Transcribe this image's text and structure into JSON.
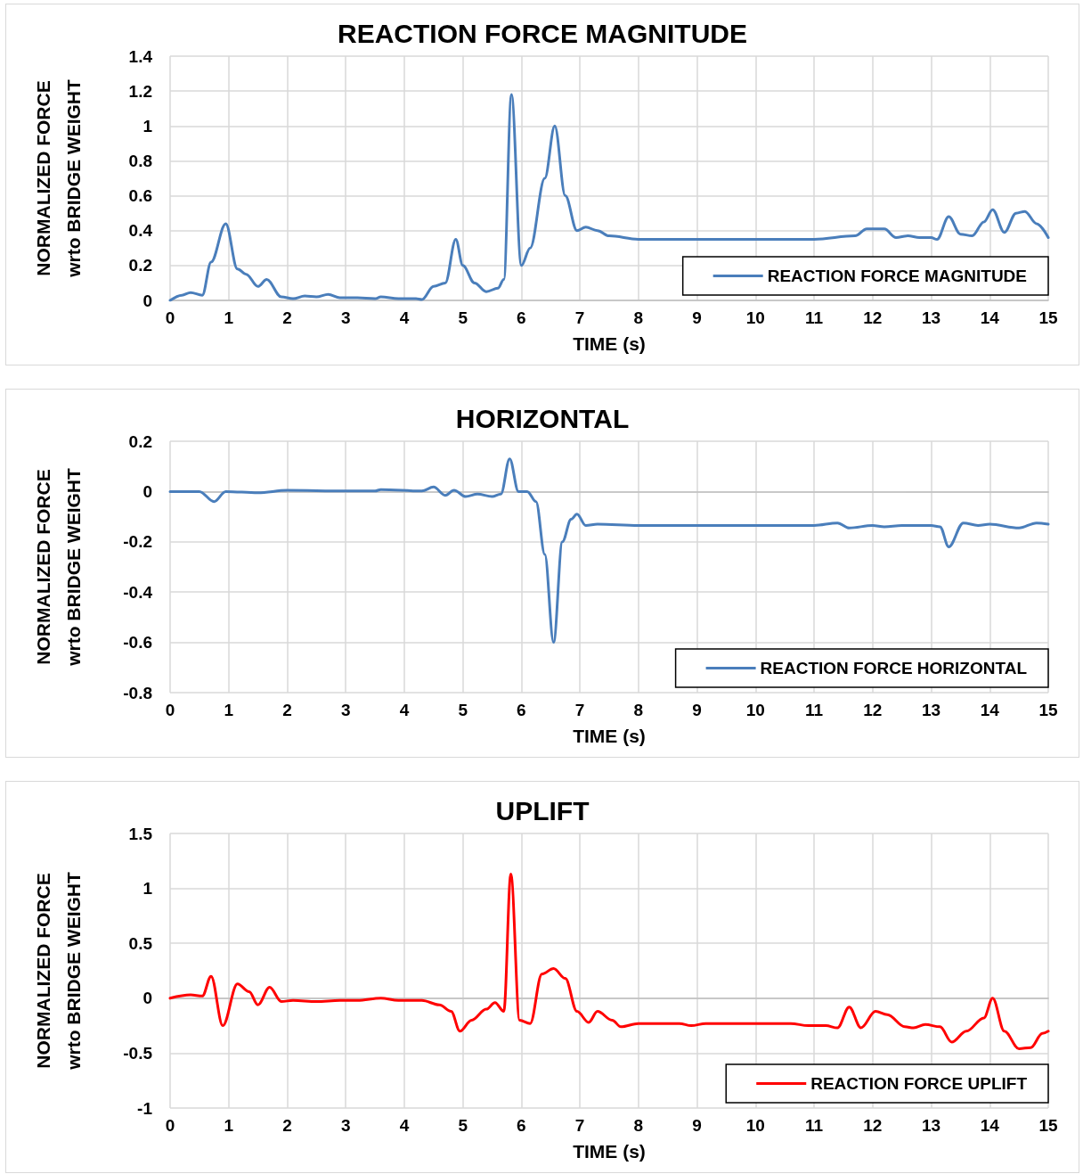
{
  "chart_data": [
    {
      "type": "line",
      "title": "REACTION FORCE MAGNITUDE",
      "xlabel": "TIME (s)",
      "ylabel": "NORMALIZED FORCE wrto BRIDGE WEIGHT",
      "xlim": [
        0,
        15
      ],
      "xticks": [
        0,
        1,
        2,
        3,
        4,
        5,
        6,
        7,
        8,
        9,
        10,
        11,
        12,
        13,
        14,
        15
      ],
      "ylim": [
        0,
        1.4
      ],
      "yticks": [
        0,
        0.2,
        0.4,
        0.6,
        0.8,
        1,
        1.2,
        1.4
      ],
      "grid": true,
      "legend": "bottom right",
      "marker": "none",
      "line_style": "solid",
      "series": [
        {
          "name": "REACTION FORCE MAGNITUDE",
          "color": "#4a7ebb",
          "x": [
            0,
            0.2,
            0.35,
            0.55,
            0.7,
            0.95,
            1.15,
            1.3,
            1.5,
            1.65,
            1.9,
            2.1,
            2.3,
            2.5,
            2.7,
            2.9,
            3.2,
            3.5,
            3.6,
            3.9,
            4.2,
            4.3,
            4.5,
            4.7,
            4.88,
            5,
            5.2,
            5.4,
            5.6,
            5.7,
            5.83,
            6,
            6.15,
            6.4,
            6.57,
            6.75,
            6.95,
            7.1,
            7.3,
            7.5,
            8,
            9,
            10,
            11,
            11.7,
            11.9,
            12.2,
            12.4,
            12.6,
            12.8,
            13,
            13.1,
            13.3,
            13.5,
            13.7,
            13.9,
            14.05,
            14.25,
            14.45,
            14.6,
            14.8,
            15
          ],
          "values": [
            0,
            0.03,
            0.045,
            0.03,
            0.22,
            0.44,
            0.18,
            0.15,
            0.08,
            0.12,
            0.02,
            0.01,
            0.025,
            0.02,
            0.035,
            0.015,
            0.015,
            0.01,
            0.02,
            0.01,
            0.01,
            0.005,
            0.08,
            0.1,
            0.35,
            0.2,
            0.1,
            0.05,
            0.07,
            0.12,
            1.18,
            0.2,
            0.3,
            0.7,
            1,
            0.6,
            0.4,
            0.42,
            0.4,
            0.37,
            0.35,
            0.35,
            0.35,
            0.35,
            0.37,
            0.41,
            0.41,
            0.36,
            0.37,
            0.36,
            0.36,
            0.35,
            0.48,
            0.38,
            0.37,
            0.45,
            0.52,
            0.39,
            0.5,
            0.51,
            0.44,
            0.36
          ]
        }
      ]
    },
    {
      "type": "line",
      "title": "HORIZONTAL",
      "xlabel": "TIME (s)",
      "ylabel": "NORMALIZED FORCE wrto BRIDGE WEIGHT",
      "xlim": [
        0,
        15
      ],
      "xticks": [
        0,
        1,
        2,
        3,
        4,
        5,
        6,
        7,
        8,
        9,
        10,
        11,
        12,
        13,
        14,
        15
      ],
      "ylim": [
        -0.8,
        0.2
      ],
      "yticks": [
        -0.8,
        -0.6,
        -0.4,
        -0.2,
        0,
        0.2
      ],
      "grid": true,
      "legend": "bottom right",
      "marker": "none",
      "line_style": "solid",
      "series": [
        {
          "name": "REACTION FORCE HORIZONTAL",
          "color": "#4a7ebb",
          "x": [
            0,
            0.5,
            0.75,
            0.95,
            1.5,
            2,
            3,
            3.5,
            3.6,
            4.3,
            4.5,
            4.7,
            4.85,
            5.05,
            5.25,
            5.5,
            5.65,
            5.8,
            5.95,
            6.1,
            6.25,
            6.4,
            6.55,
            6.7,
            6.85,
            6.95,
            7.1,
            7.3,
            8,
            9,
            10,
            11,
            11.4,
            11.6,
            12,
            12.2,
            12.5,
            13,
            13.15,
            13.3,
            13.55,
            13.8,
            14,
            14.5,
            14.8,
            15
          ],
          "values": [
            0,
            0,
            -0.04,
            0,
            -0.005,
            0.005,
            0.002,
            0.002,
            0.008,
            0.002,
            0.018,
            -0.015,
            0.005,
            -0.02,
            -0.01,
            -0.02,
            -0.01,
            0.13,
            0,
            0,
            -0.04,
            -0.25,
            -0.6,
            -0.2,
            -0.11,
            -0.09,
            -0.135,
            -0.13,
            -0.135,
            -0.135,
            -0.135,
            -0.135,
            -0.125,
            -0.145,
            -0.135,
            -0.14,
            -0.135,
            -0.135,
            -0.14,
            -0.22,
            -0.125,
            -0.135,
            -0.13,
            -0.145,
            -0.125,
            -0.13
          ]
        }
      ]
    },
    {
      "type": "line",
      "title": "UPLIFT",
      "xlabel": "TIME (s)",
      "ylabel": "NORMALIZED FORCE wrto BRIDGE WEIGHT",
      "xlim": [
        0,
        15
      ],
      "xticks": [
        0,
        1,
        2,
        3,
        4,
        5,
        6,
        7,
        8,
        9,
        10,
        11,
        12,
        13,
        14,
        15
      ],
      "ylim": [
        -1,
        1.5
      ],
      "yticks": [
        -1,
        -0.5,
        0,
        0.5,
        1,
        1.5
      ],
      "grid": true,
      "legend": "bottom right",
      "marker": "none",
      "line_style": "solid",
      "series": [
        {
          "name": "REACTION FORCE UPLIFT",
          "color": "#ff0000",
          "x": [
            0,
            0.35,
            0.55,
            0.7,
            0.9,
            1.15,
            1.35,
            1.5,
            1.7,
            1.9,
            2.1,
            2.5,
            2.9,
            3.2,
            3.6,
            3.9,
            4.3,
            4.6,
            4.8,
            4.95,
            5.15,
            5.4,
            5.55,
            5.7,
            5.82,
            5.97,
            6.15,
            6.35,
            6.55,
            6.75,
            6.95,
            7.15,
            7.3,
            7.55,
            7.7,
            8,
            8.7,
            8.9,
            9.15,
            10,
            10.6,
            10.9,
            11.2,
            11.4,
            11.6,
            11.8,
            12.05,
            12.25,
            12.55,
            12.7,
            12.9,
            13.15,
            13.35,
            13.6,
            13.9,
            14.05,
            14.25,
            14.5,
            14.7,
            14.9,
            15
          ],
          "values": [
            0,
            0.03,
            0.02,
            0.2,
            -0.25,
            0.13,
            0.06,
            -0.06,
            0.1,
            -0.03,
            -0.02,
            -0.03,
            -0.02,
            -0.02,
            0,
            -0.02,
            -0.02,
            -0.06,
            -0.12,
            -0.3,
            -0.2,
            -0.1,
            -0.04,
            -0.12,
            1.13,
            -0.2,
            -0.23,
            0.22,
            0.27,
            0.18,
            -0.12,
            -0.22,
            -0.12,
            -0.2,
            -0.26,
            -0.23,
            -0.23,
            -0.25,
            -0.23,
            -0.23,
            -0.23,
            -0.25,
            -0.25,
            -0.27,
            -0.08,
            -0.27,
            -0.12,
            -0.15,
            -0.26,
            -0.27,
            -0.24,
            -0.26,
            -0.4,
            -0.3,
            -0.18,
            0,
            -0.3,
            -0.46,
            -0.45,
            -0.32,
            -0.3
          ]
        }
      ]
    }
  ]
}
